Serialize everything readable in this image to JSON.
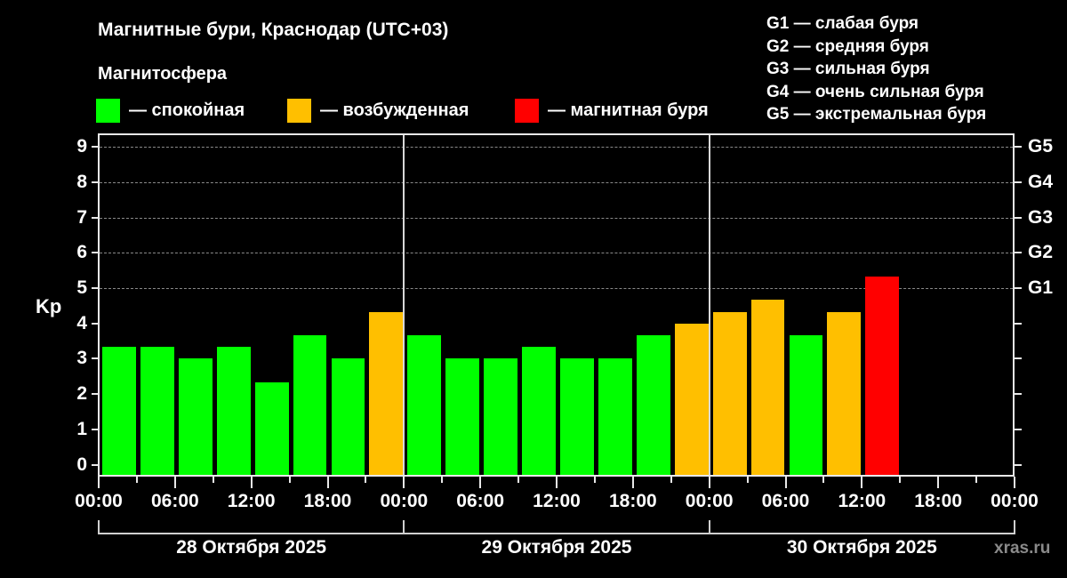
{
  "header": {
    "title": "Магнитные бури, Краснодар (UTC+03)",
    "subtitle": "Магнитосфера"
  },
  "legend": [
    {
      "label": "— спокойная",
      "color": "#00FF00"
    },
    {
      "label": "— возбужденная",
      "color": "#FFBF00"
    },
    {
      "label": "— магнитная буря",
      "color": "#FF0000"
    }
  ],
  "storm_levels": [
    "G1 — слабая буря",
    "G2 — средняя буря",
    "G3 — сильная буря",
    "G4 — очень сильная буря",
    "G5 — экстремальная буря"
  ],
  "axis": {
    "y_label": "Kp",
    "y_ticks": [
      "0",
      "1",
      "2",
      "3",
      "4",
      "5",
      "6",
      "7",
      "8",
      "9"
    ],
    "right_ticks": [
      {
        "kp": 5,
        "label": "G1"
      },
      {
        "kp": 6,
        "label": "G2"
      },
      {
        "kp": 7,
        "label": "G3"
      },
      {
        "kp": 8,
        "label": "G4"
      },
      {
        "kp": 9,
        "label": "G5"
      }
    ],
    "x_ticks": [
      "00:00",
      "06:00",
      "12:00",
      "18:00",
      "00:00",
      "06:00",
      "12:00",
      "18:00",
      "00:00",
      "06:00",
      "12:00",
      "18:00",
      "00:00"
    ],
    "dates": [
      "28 Октября 2025",
      "29 Октября 2025",
      "30 Октября 2025"
    ]
  },
  "watermark": "xras.ru",
  "chart_data": {
    "type": "bar",
    "title": "Магнитные бури, Краснодар (UTC+03)",
    "xlabel": "",
    "ylabel": "Kp",
    "ylim": [
      0,
      9
    ],
    "grid": "horizontal dashed at 5-9",
    "interval_hours": 3,
    "categories": [
      "28.10 00:00",
      "28.10 03:00",
      "28.10 06:00",
      "28.10 09:00",
      "28.10 12:00",
      "28.10 15:00",
      "28.10 18:00",
      "28.10 21:00",
      "29.10 00:00",
      "29.10 03:00",
      "29.10 06:00",
      "29.10 09:00",
      "29.10 12:00",
      "29.10 15:00",
      "29.10 18:00",
      "29.10 21:00",
      "30.10 00:00",
      "30.10 03:00",
      "30.10 06:00",
      "30.10 09:00",
      "30.10 12:00",
      "30.10 15:00",
      "30.10 18:00",
      "30.10 21:00"
    ],
    "values": [
      3.33,
      3.33,
      3.0,
      3.33,
      2.33,
      3.67,
      3.0,
      4.33,
      3.67,
      3.0,
      3.0,
      3.33,
      3.0,
      3.0,
      3.67,
      4.0,
      4.33,
      4.67,
      3.67,
      4.33,
      5.33,
      null,
      null,
      null
    ],
    "status": [
      "quiet",
      "quiet",
      "quiet",
      "quiet",
      "quiet",
      "quiet",
      "quiet",
      "unsettled",
      "quiet",
      "quiet",
      "quiet",
      "quiet",
      "quiet",
      "quiet",
      "quiet",
      "unsettled",
      "unsettled",
      "unsettled",
      "quiet",
      "unsettled",
      "storm",
      null,
      null,
      null
    ],
    "status_colors": {
      "quiet": "#00FF00",
      "unsettled": "#FFBF00",
      "storm": "#FF0000"
    },
    "legend": [
      "спокойная",
      "возбужденная",
      "магнитная буря"
    ],
    "right_axis": {
      "G1": 5,
      "G2": 6,
      "G3": 7,
      "G4": 8,
      "G5": 9
    }
  }
}
